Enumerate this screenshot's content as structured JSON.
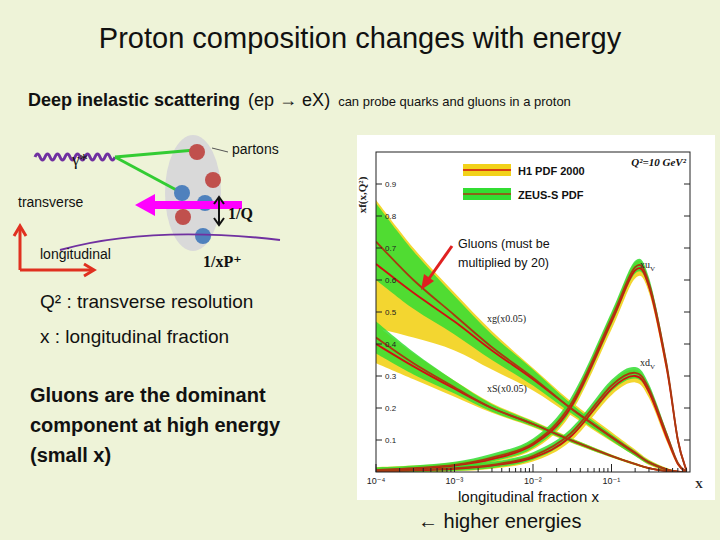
{
  "chart_data": {
    "type": "line",
    "title": "Proton composition changes with energy",
    "subtitle": [
      "Deep inelastic scattering",
      "(ep → eX)",
      "can probe quarks and gluons in a proton"
    ],
    "annotations": [
      "γ*",
      "partons",
      "transverse",
      "longitudinal",
      "1/Q",
      "1/xP⁺",
      "Q² : transverse resolution",
      "x : longitudinal fraction",
      "Gluons are the dominant",
      "component at high energy",
      "(small x)",
      "Gluons (must be",
      "multiplied by 20)",
      "longitudinal fraction  x",
      "← higher energies"
    ],
    "plot_text": "Q²=10 GeV²",
    "x_label": "X",
    "y_label": "xf(x,Q²)",
    "log": "x",
    "xlim": [
      0.0001,
      1
    ],
    "ylim": [
      0,
      1
    ],
    "xticks": [
      {
        "value": 0.0001,
        "label": "10⁻⁴"
      },
      {
        "value": 0.001,
        "label": "10⁻³"
      },
      {
        "value": 0.01,
        "label": "10⁻²"
      },
      {
        "value": 0.1,
        "label": "10⁻¹"
      }
    ],
    "yticks": [
      0.1,
      0.2,
      0.3,
      0.4,
      0.5,
      0.6,
      0.7,
      0.8,
      0.9
    ],
    "curve_labels": [
      {
        "text": "xu",
        "sub": "V"
      },
      {
        "text": "xd",
        "sub": "V"
      },
      {
        "text": "xg(x0.05)"
      },
      {
        "text": "xS(x0.05)"
      }
    ],
    "x": [
      0.0001,
      0.0003,
      0.001,
      0.003,
      0.01,
      0.03,
      0.1,
      0.2,
      0.3,
      0.5,
      0.7,
      0.9
    ],
    "legend": "top",
    "series": [
      {
        "name": "H1 PDF 2000",
        "color": "#f2d21a",
        "values": [
          [
            0.005,
            0.01,
            0.02,
            0.04,
            0.085,
            0.2,
            0.47,
            0.63,
            0.58,
            0.33,
            0.1,
            0.005
          ],
          [
            0.003,
            0.005,
            0.01,
            0.02,
            0.045,
            0.11,
            0.26,
            0.3,
            0.25,
            0.11,
            0.025,
            0.001
          ],
          [
            0.65,
            0.56,
            0.47,
            0.38,
            0.29,
            0.2,
            0.11,
            0.06,
            0.03,
            0.008,
            0.001,
            0
          ],
          [
            0.4,
            0.33,
            0.26,
            0.2,
            0.15,
            0.1,
            0.05,
            0.025,
            0.012,
            0.003,
            0,
            0
          ]
        ],
        "errors": [
          [
            0.01,
            0.01,
            0.01,
            0.01,
            0.015,
            0.02,
            0.025,
            0.025,
            0.02,
            0.015,
            0.008,
            0.002
          ],
          [
            0.008,
            0.008,
            0.008,
            0.01,
            0.012,
            0.015,
            0.02,
            0.02,
            0.018,
            0.012,
            0.005,
            0.001
          ],
          [
            0.2,
            0.14,
            0.09,
            0.06,
            0.035,
            0.022,
            0.015,
            0.01,
            0.008,
            0.005,
            0.002,
            0.001
          ],
          [
            0.06,
            0.04,
            0.025,
            0.015,
            0.01,
            0.008,
            0.005,
            0.004,
            0.003,
            0.002,
            0.001,
            0
          ]
        ]
      },
      {
        "name": "ZEUS-S PDF",
        "color": "#33dd33",
        "values": [
          [
            0.006,
            0.012,
            0.022,
            0.045,
            0.09,
            0.21,
            0.48,
            0.64,
            0.59,
            0.34,
            0.1,
            0.005
          ],
          [
            0.003,
            0.006,
            0.012,
            0.022,
            0.05,
            0.12,
            0.27,
            0.31,
            0.26,
            0.12,
            0.028,
            0.001
          ],
          [
            0.72,
            0.6,
            0.49,
            0.39,
            0.295,
            0.2,
            0.108,
            0.058,
            0.03,
            0.008,
            0.001,
            0
          ],
          [
            0.42,
            0.34,
            0.265,
            0.2,
            0.15,
            0.1,
            0.05,
            0.025,
            0.012,
            0.003,
            0,
            0
          ]
        ],
        "errors": [
          [
            0.008,
            0.008,
            0.01,
            0.012,
            0.015,
            0.02,
            0.02,
            0.02,
            0.018,
            0.012,
            0.006,
            0.002
          ],
          [
            0.006,
            0.006,
            0.008,
            0.01,
            0.012,
            0.014,
            0.018,
            0.018,
            0.015,
            0.01,
            0.004,
            0.001
          ],
          [
            0.12,
            0.09,
            0.06,
            0.04,
            0.025,
            0.015,
            0.01,
            0.008,
            0.006,
            0.004,
            0.002,
            0.001
          ],
          [
            0.05,
            0.035,
            0.02,
            0.012,
            0.008,
            0.006,
            0.004,
            0.003,
            0.002,
            0.001,
            0.001,
            0
          ]
        ]
      }
    ]
  }
}
